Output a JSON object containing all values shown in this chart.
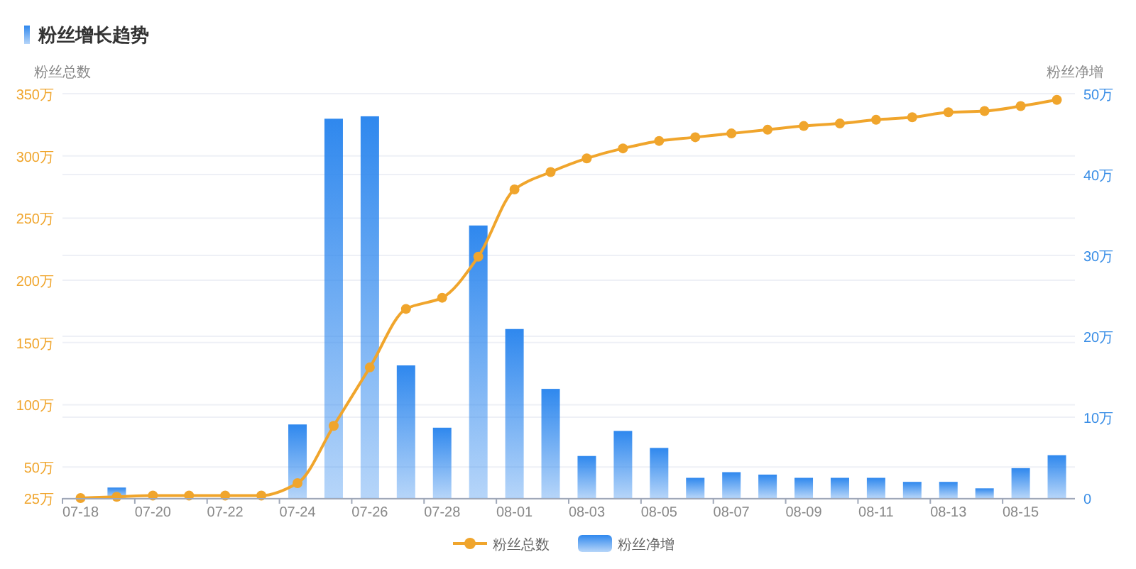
{
  "chart_data": {
    "type": "bar",
    "title": "粉丝增长趋势",
    "ylabel": "粉丝总数",
    "y2label": "粉丝净增",
    "categories": [
      "07-18",
      null,
      "07-20",
      null,
      "07-22",
      null,
      "07-24",
      null,
      "07-26",
      null,
      "07-28",
      null,
      "08-01",
      null,
      "08-03",
      null,
      "08-05",
      null,
      "08-07",
      null,
      "08-09",
      null,
      "08-11",
      null,
      "08-13",
      null,
      "08-15",
      null
    ],
    "series": [
      {
        "name": "粉丝总数",
        "type": "line",
        "color": "#f0a52c",
        "marker": "circle",
        "values": [
          25,
          26,
          27,
          27,
          27,
          27,
          37,
          83,
          130,
          177,
          186,
          219,
          273,
          287,
          298,
          306,
          312,
          315,
          318,
          321,
          324,
          326,
          329,
          331,
          335,
          336,
          340,
          345
        ]
      },
      {
        "name": "粉丝净增",
        "axis": "y2",
        "color": "#2f88ee",
        "values": [
          0,
          1.3,
          null,
          null,
          null,
          null,
          9.1,
          46.9,
          47.2,
          16.4,
          8.7,
          33.7,
          20.9,
          13.5,
          5.2,
          8.3,
          6.2,
          2.5,
          3.2,
          2.9,
          2.5,
          2.5,
          2.5,
          2.0,
          2.0,
          1.2,
          3.7,
          5.3
        ]
      }
    ],
    "ylim": [
      25,
      350
    ],
    "yticks": [
      {
        "value": 25,
        "label": "25万"
      },
      {
        "value": 50,
        "label": "50万"
      },
      {
        "value": 100,
        "label": "100万"
      },
      {
        "value": 150,
        "label": "150万"
      },
      {
        "value": 200,
        "label": "200万"
      },
      {
        "value": 250,
        "label": "250万"
      },
      {
        "value": 300,
        "label": "300万"
      },
      {
        "value": 350,
        "label": "350万"
      }
    ],
    "y2lim": [
      0,
      50
    ],
    "y2ticks": [
      0,
      {
        "value": 10,
        "label": "10万"
      },
      {
        "value": 20,
        "label": "20万"
      },
      {
        "value": 30,
        "label": "30万"
      },
      {
        "value": 40,
        "label": "40万"
      },
      {
        "value": 50,
        "label": "50万"
      }
    ],
    "grid": "y",
    "legend": "bottom"
  }
}
